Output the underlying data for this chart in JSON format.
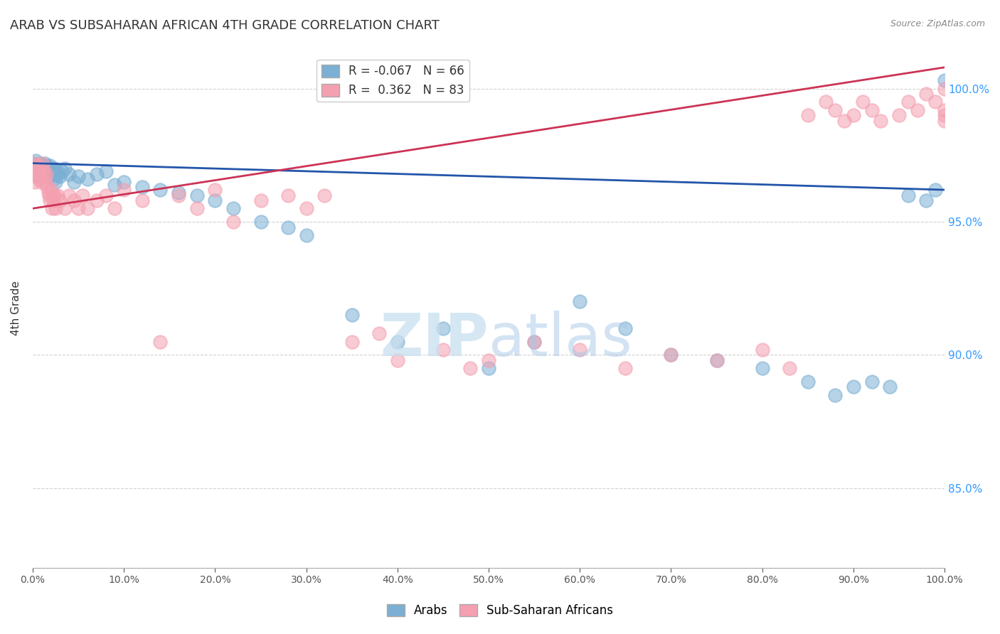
{
  "title": "ARAB VS SUBSAHARAN AFRICAN 4TH GRADE CORRELATION CHART",
  "source": "Source: ZipAtlas.com",
  "ylabel": "4th Grade",
  "x_range": [
    0.0,
    100.0
  ],
  "y_range": [
    82.0,
    101.5
  ],
  "arab_color": "#7bafd4",
  "subsaharan_color": "#f4a0b0",
  "arab_line_color": "#2255aa",
  "subsaharan_line_color": "#cc3355",
  "arab_R": -0.067,
  "arab_N": 66,
  "subsaharan_R": 0.362,
  "subsaharan_N": 83,
  "arab_line_y0": 97.2,
  "arab_line_y1": 96.2,
  "sub_line_y0": 95.5,
  "sub_line_y1": 100.8,
  "arab_x": [
    0.1,
    0.2,
    0.3,
    0.4,
    0.5,
    0.6,
    0.7,
    0.8,
    0.9,
    1.0,
    1.1,
    1.2,
    1.3,
    1.4,
    1.5,
    1.6,
    1.7,
    1.8,
    1.9,
    2.0,
    2.1,
    2.2,
    2.3,
    2.4,
    2.5,
    2.6,
    2.8,
    3.0,
    3.2,
    3.5,
    4.0,
    4.5,
    5.0,
    6.0,
    7.0,
    8.0,
    9.0,
    10.0,
    12.0,
    14.0,
    16.0,
    18.0,
    20.0,
    22.0,
    25.0,
    28.0,
    30.0,
    35.0,
    40.0,
    45.0,
    50.0,
    55.0,
    60.0,
    65.0,
    70.0,
    75.0,
    80.0,
    85.0,
    88.0,
    90.0,
    92.0,
    94.0,
    96.0,
    98.0,
    99.0,
    100.0
  ],
  "arab_y": [
    97.2,
    97.0,
    97.3,
    96.8,
    97.1,
    96.9,
    97.0,
    97.2,
    96.7,
    97.1,
    97.0,
    96.8,
    97.2,
    96.9,
    97.1,
    96.8,
    97.0,
    96.7,
    97.1,
    96.9,
    97.0,
    96.8,
    96.6,
    97.0,
    96.5,
    96.9,
    96.8,
    96.7,
    96.9,
    97.0,
    96.8,
    96.5,
    96.7,
    96.6,
    96.8,
    96.9,
    96.4,
    96.5,
    96.3,
    96.2,
    96.1,
    96.0,
    95.8,
    95.5,
    95.0,
    94.8,
    94.5,
    91.5,
    90.5,
    91.0,
    89.5,
    90.5,
    92.0,
    91.0,
    90.0,
    89.8,
    89.5,
    89.0,
    88.5,
    88.8,
    89.0,
    88.8,
    96.0,
    95.8,
    96.2,
    100.3
  ],
  "subsaharan_x": [
    0.1,
    0.15,
    0.2,
    0.25,
    0.3,
    0.35,
    0.4,
    0.45,
    0.5,
    0.55,
    0.6,
    0.65,
    0.7,
    0.8,
    0.9,
    1.0,
    1.1,
    1.2,
    1.3,
    1.4,
    1.5,
    1.6,
    1.7,
    1.8,
    1.9,
    2.0,
    2.1,
    2.2,
    2.3,
    2.4,
    2.5,
    2.7,
    3.0,
    3.5,
    4.0,
    4.5,
    5.0,
    5.5,
    6.0,
    7.0,
    8.0,
    9.0,
    10.0,
    12.0,
    14.0,
    16.0,
    18.0,
    20.0,
    22.0,
    25.0,
    28.0,
    30.0,
    32.0,
    35.0,
    38.0,
    40.0,
    45.0,
    48.0,
    50.0,
    55.0,
    60.0,
    65.0,
    70.0,
    75.0,
    80.0,
    83.0,
    85.0,
    87.0,
    88.0,
    89.0,
    90.0,
    91.0,
    92.0,
    93.0,
    95.0,
    96.0,
    97.0,
    98.0,
    99.0,
    100.0,
    100.0,
    100.0,
    100.0
  ],
  "subsaharan_y": [
    97.0,
    96.8,
    97.2,
    96.5,
    97.0,
    96.8,
    97.1,
    96.7,
    97.0,
    96.9,
    96.8,
    97.1,
    96.6,
    97.0,
    96.5,
    97.2,
    96.9,
    97.0,
    96.7,
    96.5,
    96.8,
    96.3,
    96.1,
    96.0,
    95.8,
    96.2,
    95.5,
    96.0,
    95.8,
    96.0,
    95.5,
    96.0,
    95.8,
    95.5,
    96.0,
    95.8,
    95.5,
    96.0,
    95.5,
    95.8,
    96.0,
    95.5,
    96.2,
    95.8,
    90.5,
    96.0,
    95.5,
    96.2,
    95.0,
    95.8,
    96.0,
    95.5,
    96.0,
    90.5,
    90.8,
    89.8,
    90.2,
    89.5,
    89.8,
    90.5,
    90.2,
    89.5,
    90.0,
    89.8,
    90.2,
    89.5,
    99.0,
    99.5,
    99.2,
    98.8,
    99.0,
    99.5,
    99.2,
    98.8,
    99.0,
    99.5,
    99.2,
    99.8,
    99.5,
    99.2,
    99.0,
    98.8,
    100.0
  ],
  "watermark_zip": "ZIP",
  "watermark_atlas": "atlas",
  "background_color": "#ffffff",
  "grid_color": "#cccccc",
  "right_tick_color": "#3399ff",
  "y_ticks": [
    85.0,
    90.0,
    95.0,
    100.0
  ]
}
